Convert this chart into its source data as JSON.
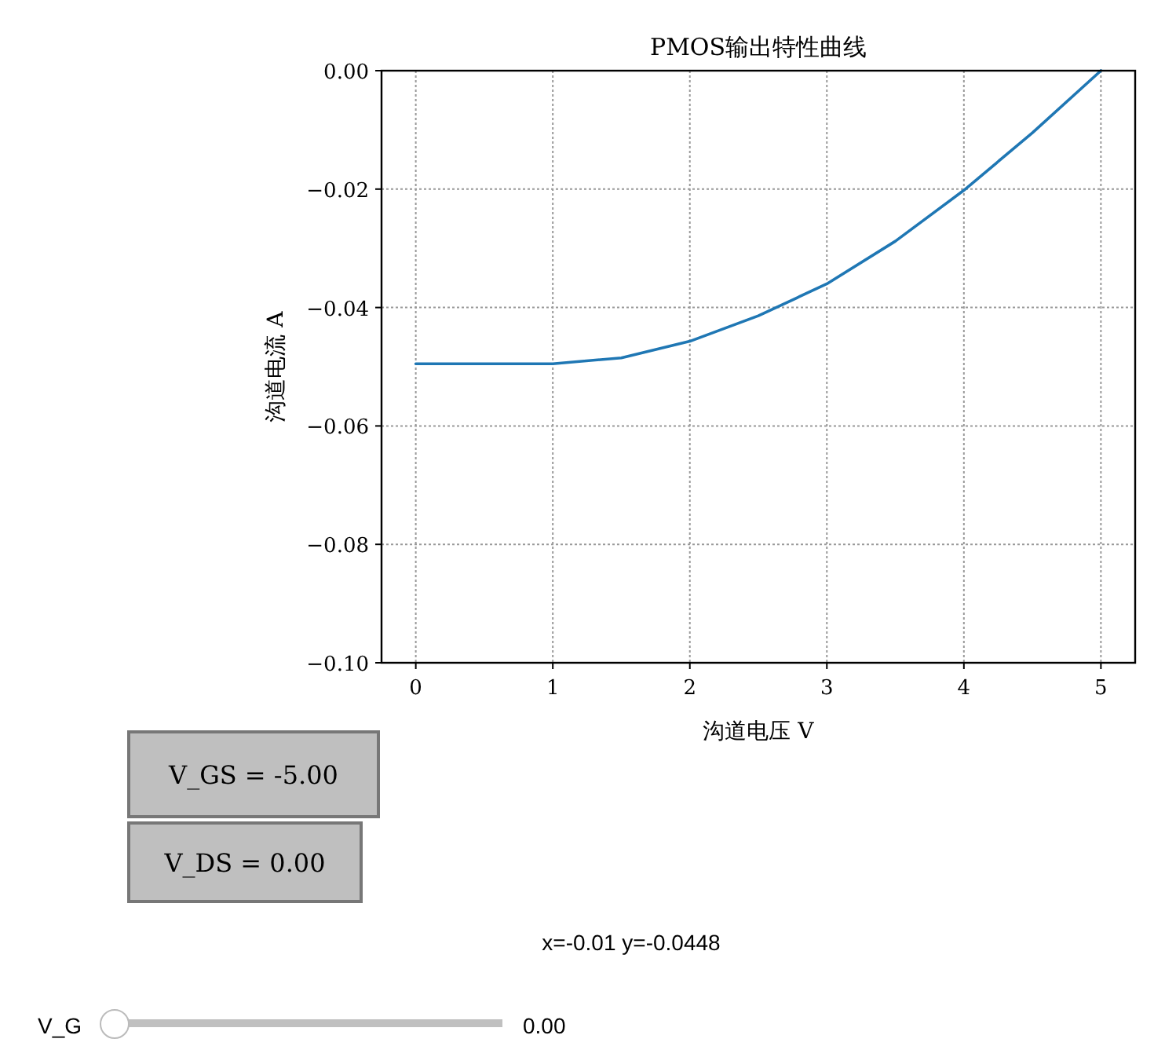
{
  "chart_data": {
    "type": "line",
    "title": "PMOS输出特性曲线",
    "xlabel": "沟道电压 V",
    "ylabel": "沟道电流 A",
    "x": [
      0,
      0.5,
      1,
      1.5,
      2,
      2.5,
      3,
      3.5,
      4,
      4.5,
      5
    ],
    "series": [
      {
        "color": "#1f77b4",
        "values": [
          -0.0495,
          -0.0495,
          -0.0495,
          -0.0485,
          -0.0457,
          -0.0414,
          -0.036,
          -0.0288,
          -0.0202,
          -0.0105,
          0
        ]
      }
    ],
    "xlim": [
      -0.25,
      5.25
    ],
    "ylim": [
      -0.1,
      0
    ],
    "xticks": [
      0,
      1,
      2,
      3,
      4,
      5
    ],
    "yticks": [
      {
        "value": 0,
        "label": "0.00"
      },
      {
        "value": -0.02,
        "label": "−0.02"
      },
      {
        "value": -0.04,
        "label": "−0.04"
      },
      {
        "value": -0.06,
        "label": "−0.06"
      },
      {
        "value": -0.08,
        "label": "−0.08"
      },
      {
        "value": -0.1,
        "label": "−0.10"
      }
    ],
    "grid": true,
    "marker": "none",
    "line_style": "solid",
    "annotations": [
      "V_GS = -5.00",
      "V_DS = 0.00",
      "x=-0.01 y=-0.0448",
      "V_G",
      "0.00"
    ]
  }
}
